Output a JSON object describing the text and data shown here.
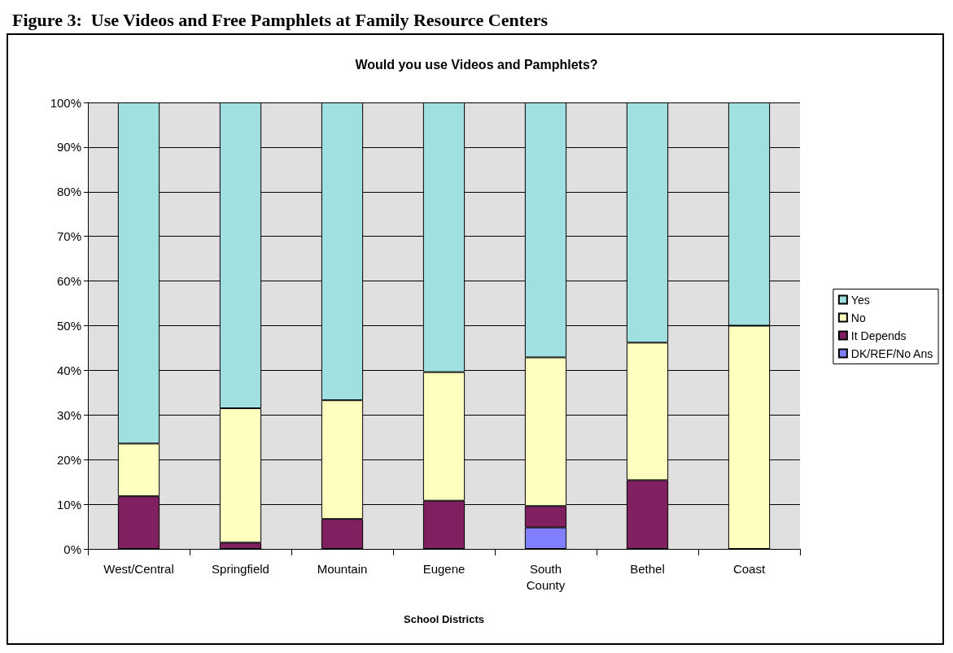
{
  "chart_data": {
    "type": "bar",
    "stacked": true,
    "title": "Figure 3:  Use Videos and Free Pamphlets at Family Resource Centers",
    "subtitle": "Would you use Videos and Pamphlets?",
    "xlabel": "School Districts",
    "categories": [
      "West/Central",
      "Springfield",
      "Mountain",
      "Eugene",
      "South County",
      "Bethel",
      "Coast"
    ],
    "series": [
      {
        "name": "DK/REF/No Ans",
        "color": "#8080ff",
        "values": [
          0,
          0,
          0,
          0,
          4.8,
          0,
          0
        ]
      },
      {
        "name": "It Depends",
        "color": "#802060",
        "values": [
          11.8,
          1.4,
          6.7,
          10.8,
          4.8,
          15.4,
          0
        ]
      },
      {
        "name": "No",
        "color": "#ffffc0",
        "values": [
          11.8,
          30.1,
          26.6,
          28.8,
          33.3,
          30.8,
          50
        ]
      },
      {
        "name": "Yes",
        "color": "#a0e0e0",
        "values": [
          76.4,
          68.5,
          66.7,
          60.4,
          57.1,
          53.8,
          50
        ]
      }
    ],
    "ylim": [
      0,
      100
    ],
    "yticks": [
      {
        "value": 0,
        "label": "0%"
      },
      {
        "value": 10,
        "label": "10%"
      },
      {
        "value": 20,
        "label": "20%"
      },
      {
        "value": 30,
        "label": "30%"
      },
      {
        "value": 40,
        "label": "40%"
      },
      {
        "value": 50,
        "label": "50%"
      },
      {
        "value": 60,
        "label": "60%"
      },
      {
        "value": 70,
        "label": "70%"
      },
      {
        "value": 80,
        "label": "80%"
      },
      {
        "value": 90,
        "label": "90%"
      },
      {
        "value": 100,
        "label": "100%"
      }
    ],
    "grid": "y",
    "legend": "right"
  }
}
